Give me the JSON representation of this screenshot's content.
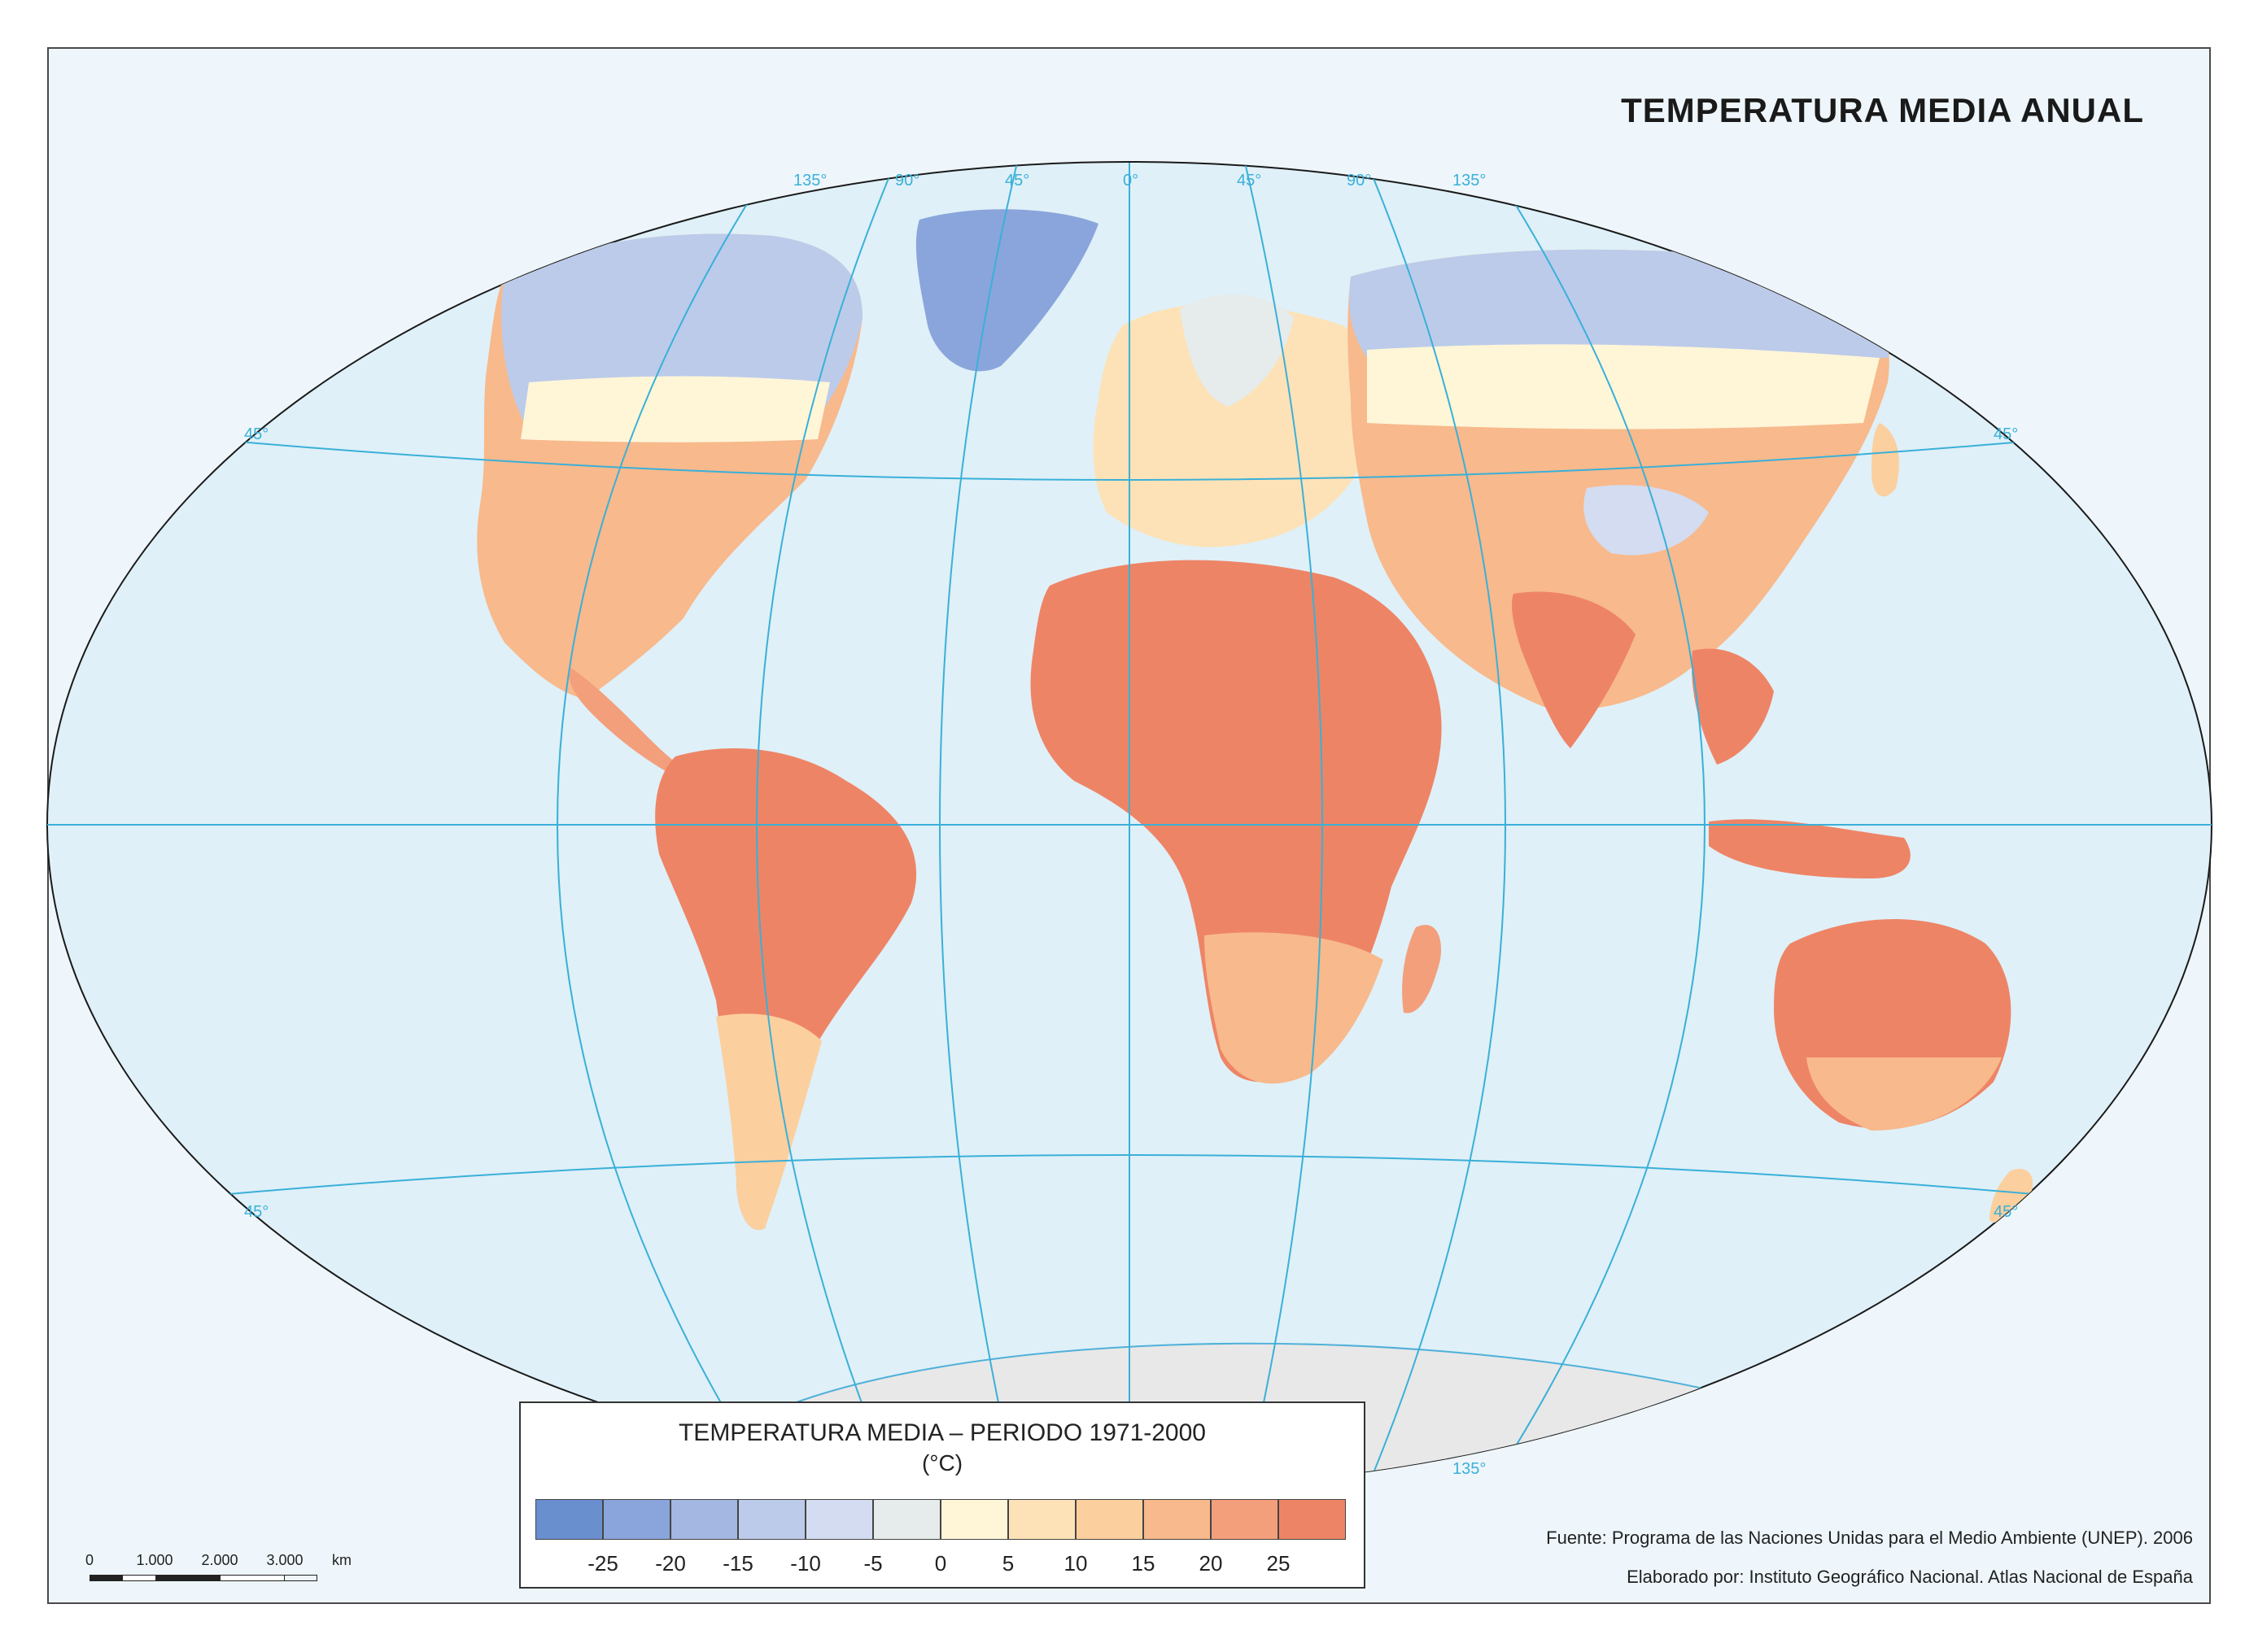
{
  "map": {
    "title": "TEMPERATURA MEDIA ANUAL",
    "graticule_top_labels": [
      "135°",
      "90°",
      "45°",
      "0°",
      "45°",
      "90°",
      "135°"
    ],
    "graticule_lat_labels": [
      "45°",
      "45°",
      "45°",
      "45°"
    ],
    "graticule_bottom_label": "135°",
    "colors": {
      "ocean": "#dff0f8",
      "graticule": "#3ab0d8",
      "border": "#1a1a1a",
      "antarctica": "#e8e8e8"
    }
  },
  "legend": {
    "title": "TEMPERATURA MEDIA – PERIODO 1971-2000",
    "unit": "(°C)",
    "colors": [
      "#6a8fcf",
      "#8aa5db",
      "#a3b7e2",
      "#bccbea",
      "#d3dcf0",
      "#e6ebec",
      "#fff6d8",
      "#fde2b7",
      "#fccf9e",
      "#f8b98c",
      "#f39f7c",
      "#ee8466"
    ],
    "ticks": [
      "-25",
      "-20",
      "-15",
      "-10",
      "-5",
      "0",
      "5",
      "10",
      "15",
      "20",
      "25"
    ]
  },
  "footer": {
    "source": "Fuente: Programa de las Naciones Unidas para el Medio Ambiente (UNEP). 2006",
    "credit": "Elaborado por: Instituto Geográfico Nacional. Atlas Nacional de España"
  },
  "scale": {
    "labels": [
      "0",
      "1.000",
      "2.000",
      "3.000"
    ],
    "unit": "km"
  }
}
